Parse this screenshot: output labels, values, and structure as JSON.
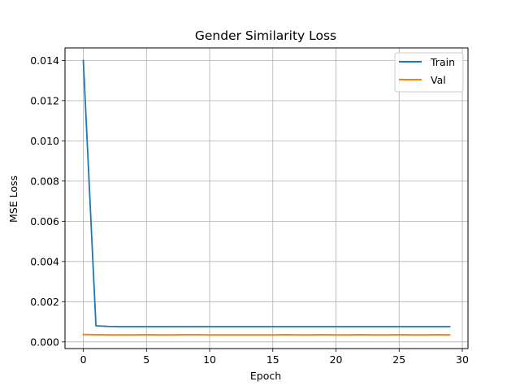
{
  "chart_data": {
    "type": "line",
    "title": "Gender Similarity Loss",
    "xlabel": "Epoch",
    "ylabel": "MSE Loss",
    "xlim": [
      -1.45,
      30.45
    ],
    "ylim": [
      -0.00033,
      0.01462
    ],
    "xticks": [
      0,
      5,
      10,
      15,
      20,
      25,
      30
    ],
    "yticks": [
      0.0,
      0.002,
      0.004,
      0.006,
      0.008,
      0.01,
      0.012,
      0.014
    ],
    "ytick_labels": [
      "0.000",
      "0.002",
      "0.004",
      "0.006",
      "0.008",
      "0.010",
      "0.012",
      "0.014"
    ],
    "grid": true,
    "legend": "top-right",
    "x": [
      0,
      1,
      2,
      3,
      4,
      5,
      6,
      7,
      8,
      9,
      10,
      11,
      12,
      13,
      14,
      15,
      16,
      17,
      18,
      19,
      20,
      21,
      22,
      23,
      24,
      25,
      26,
      27,
      28,
      29
    ],
    "series": [
      {
        "name": "Train",
        "color": "#1f77b4",
        "values": [
          0.014,
          0.0008,
          0.00077,
          0.00076,
          0.00076,
          0.00076,
          0.00076,
          0.00076,
          0.00076,
          0.00076,
          0.00076,
          0.00076,
          0.00076,
          0.00076,
          0.00076,
          0.00076,
          0.00076,
          0.00076,
          0.00076,
          0.00076,
          0.00076,
          0.00076,
          0.00076,
          0.00076,
          0.00076,
          0.00076,
          0.00076,
          0.00076,
          0.00076,
          0.00076
        ]
      },
      {
        "name": "Val",
        "color": "#ff7f0e",
        "values": [
          0.00037,
          0.00036,
          0.00035,
          0.00035,
          0.00035,
          0.00036,
          0.00035,
          0.00035,
          0.00036,
          0.00036,
          0.00035,
          0.00035,
          0.00035,
          0.00035,
          0.00035,
          0.00035,
          0.00036,
          0.00035,
          0.00035,
          0.00036,
          0.00035,
          0.00035,
          0.00036,
          0.00035,
          0.00035,
          0.00036,
          0.00035,
          0.00035,
          0.00036,
          0.00035
        ]
      }
    ]
  }
}
